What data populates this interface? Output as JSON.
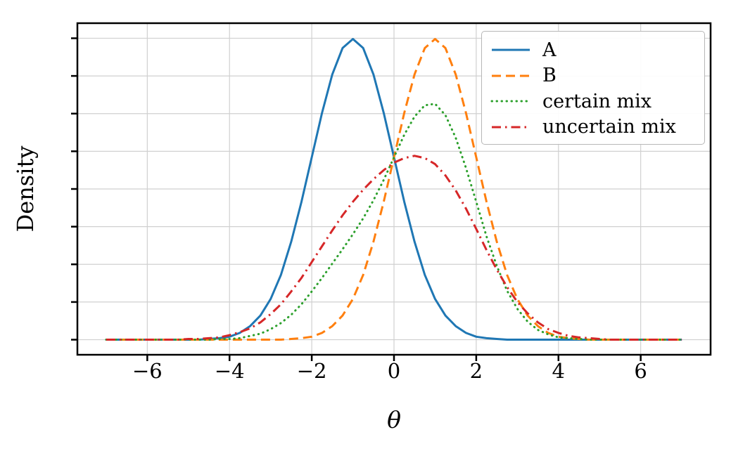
{
  "figure": {
    "background": "#ffffff",
    "grid_color": "#d0d0d0",
    "spine_color": "#000000"
  },
  "chart_data": {
    "type": "line",
    "title": "",
    "xlabel": "θ",
    "ylabel": "Density",
    "xlim": [
      -7.7,
      7.7
    ],
    "ylim": [
      -0.02,
      0.42
    ],
    "grid": true,
    "legend_position": "upper right",
    "x_ticks": [
      -6,
      -4,
      -2,
      0,
      2,
      4,
      6
    ],
    "x_tick_labels": [
      "−6",
      "−4",
      "−2",
      "0",
      "2",
      "4",
      "6"
    ],
    "y_ticks": [
      0,
      0.05,
      0.1,
      0.15,
      0.2,
      0.25,
      0.3,
      0.35,
      0.4
    ],
    "x": [
      -7,
      -6.75,
      -6.5,
      -6.25,
      -6,
      -5.75,
      -5.5,
      -5.25,
      -5,
      -4.75,
      -4.5,
      -4.25,
      -4,
      -3.75,
      -3.5,
      -3.25,
      -3,
      -2.75,
      -2.5,
      -2.25,
      -2,
      -1.75,
      -1.5,
      -1.25,
      -1,
      -0.75,
      -0.5,
      -0.25,
      0,
      0.25,
      0.5,
      0.75,
      1,
      1.25,
      1.5,
      1.75,
      2,
      2.25,
      2.5,
      2.75,
      3,
      3.25,
      3.5,
      3.75,
      4,
      4.25,
      4.5,
      4.75,
      5,
      5.25,
      5.5,
      5.75,
      6,
      6.25,
      6.5,
      6.75,
      7
    ],
    "series": [
      {
        "name": "A",
        "color": "#1f77b4",
        "style": "solid",
        "values": [
          0,
          0,
          0,
          0,
          0,
          0,
          0,
          0,
          0,
          0,
          0.001,
          0.002,
          0.004,
          0.009,
          0.018,
          0.032,
          0.054,
          0.086,
          0.13,
          0.183,
          0.242,
          0.301,
          0.352,
          0.387,
          0.399,
          0.387,
          0.352,
          0.301,
          0.242,
          0.183,
          0.13,
          0.086,
          0.054,
          0.032,
          0.018,
          0.009,
          0.004,
          0.002,
          0.001,
          0,
          0,
          0,
          0,
          0,
          0,
          0,
          0,
          0,
          0,
          0,
          0,
          0,
          0,
          0,
          0,
          0,
          0
        ]
      },
      {
        "name": "B",
        "color": "#ff7f0e",
        "style": "dashed",
        "values": [
          0,
          0,
          0,
          0,
          0,
          0,
          0,
          0,
          0,
          0,
          0,
          0,
          0,
          0,
          0,
          0,
          0,
          0,
          0.001,
          0.002,
          0.004,
          0.009,
          0.018,
          0.032,
          0.054,
          0.086,
          0.13,
          0.183,
          0.242,
          0.301,
          0.352,
          0.387,
          0.399,
          0.387,
          0.352,
          0.301,
          0.242,
          0.183,
          0.13,
          0.086,
          0.054,
          0.032,
          0.018,
          0.009,
          0.004,
          0.002,
          0.001,
          0,
          0,
          0,
          0,
          0,
          0,
          0,
          0,
          0,
          0
        ]
      },
      {
        "name": "certain mix",
        "color": "#2ca02c",
        "style": "dotted",
        "values": [
          0,
          0,
          0,
          0,
          0,
          0,
          0,
          0,
          0,
          0,
          0,
          0.001,
          0.001,
          0.002,
          0.005,
          0.008,
          0.014,
          0.022,
          0.033,
          0.047,
          0.064,
          0.082,
          0.101,
          0.12,
          0.14,
          0.161,
          0.185,
          0.212,
          0.242,
          0.272,
          0.296,
          0.311,
          0.313,
          0.298,
          0.268,
          0.228,
          0.183,
          0.137,
          0.098,
          0.065,
          0.041,
          0.024,
          0.013,
          0.007,
          0.003,
          0.002,
          0.001,
          0,
          0,
          0,
          0,
          0,
          0,
          0,
          0,
          0,
          0
        ]
      },
      {
        "name": "uncertain mix",
        "color": "#d62728",
        "style": "dashdot",
        "values": [
          0,
          0,
          0,
          0,
          0,
          0,
          0,
          0,
          0.001,
          0.001,
          0.002,
          0.003,
          0.006,
          0.01,
          0.015,
          0.023,
          0.034,
          0.047,
          0.064,
          0.082,
          0.103,
          0.124,
          0.145,
          0.165,
          0.183,
          0.199,
          0.213,
          0.225,
          0.235,
          0.241,
          0.244,
          0.241,
          0.233,
          0.218,
          0.198,
          0.174,
          0.147,
          0.119,
          0.093,
          0.07,
          0.05,
          0.035,
          0.023,
          0.014,
          0.009,
          0.005,
          0.003,
          0.002,
          0.001,
          0,
          0,
          0,
          0,
          0,
          0,
          0,
          0
        ]
      }
    ]
  }
}
